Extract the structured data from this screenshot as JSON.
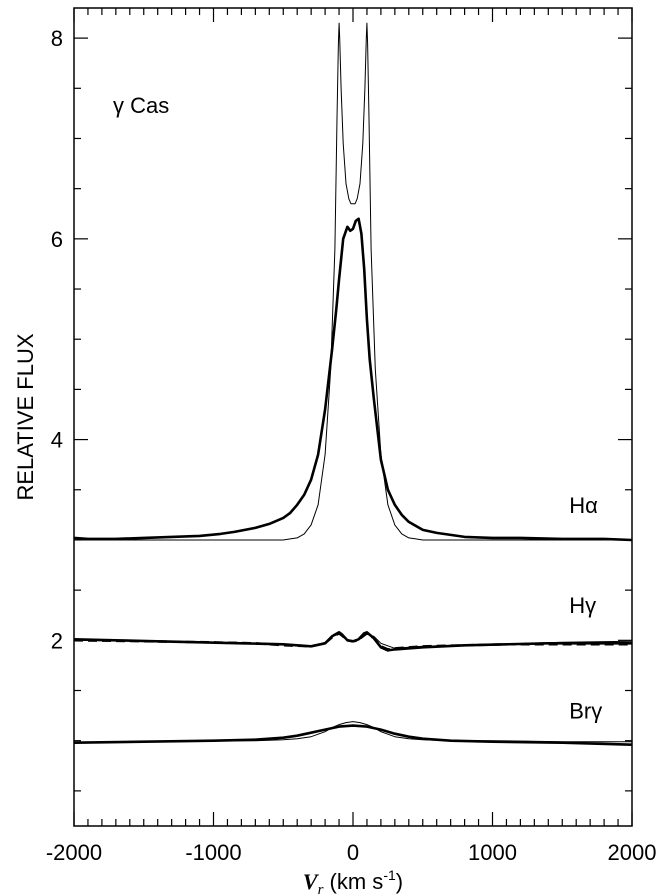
{
  "chart_data": {
    "type": "line",
    "title": "",
    "annotation": "γ Cas",
    "xlabel": "V_r (km s^-1)",
    "xlabel_parts": {
      "symbol": "V",
      "subscript": "r",
      "unit_open": " (km s",
      "unit_exp": "-1",
      "unit_close": ")"
    },
    "ylabel": "RELATIVE FLUX",
    "xlim": [
      -2000,
      2000
    ],
    "ylim": [
      0.15,
      8.3
    ],
    "xticks": [
      -2000,
      -1000,
      0,
      1000,
      2000
    ],
    "xtick_labels": [
      "-2000",
      "-1000",
      "0",
      "1000",
      "2000"
    ],
    "yticks": [
      2,
      4,
      6,
      8
    ],
    "ytick_labels": [
      "2",
      "4",
      "6",
      "8"
    ],
    "grid": false,
    "line_labels": [
      {
        "text": "Hα",
        "x": 1550,
        "y": 3.27
      },
      {
        "text": "Hγ",
        "x": 1550,
        "y": 2.27
      },
      {
        "text": "Brγ",
        "x": 1550,
        "y": 1.22
      }
    ],
    "series": [
      {
        "group": "Halpha",
        "style": "thick",
        "x": [
          -2000,
          -1900,
          -1700,
          -1500,
          -1300,
          -1100,
          -950,
          -850,
          -700,
          -600,
          -500,
          -450,
          -400,
          -350,
          -300,
          -250,
          -200,
          -150,
          -120,
          -100,
          -70,
          -40,
          -20,
          0,
          20,
          40,
          60,
          80,
          100,
          120,
          150,
          200,
          250,
          300,
          350,
          400,
          500,
          600,
          800,
          1000,
          1200,
          1500,
          1800,
          2000
        ],
        "y": [
          3.02,
          3.01,
          3.01,
          3.02,
          3.03,
          3.04,
          3.06,
          3.08,
          3.12,
          3.16,
          3.22,
          3.27,
          3.35,
          3.45,
          3.6,
          3.85,
          4.3,
          4.9,
          5.3,
          5.6,
          6.0,
          6.12,
          6.08,
          6.1,
          6.18,
          6.2,
          6.05,
          5.7,
          5.2,
          4.8,
          4.4,
          3.8,
          3.5,
          3.35,
          3.25,
          3.18,
          3.1,
          3.07,
          3.03,
          3.02,
          3.02,
          3.01,
          3.01,
          3.0
        ]
      },
      {
        "group": "Halpha",
        "style": "thin",
        "x": [
          -2000,
          -1500,
          -1000,
          -800,
          -600,
          -500,
          -450,
          -400,
          -350,
          -300,
          -250,
          -200,
          -160,
          -130,
          -115,
          -105,
          -100,
          -95,
          -85,
          -70,
          -50,
          -30,
          -15,
          0,
          15,
          30,
          50,
          70,
          85,
          95,
          100,
          105,
          115,
          130,
          160,
          200,
          250,
          300,
          350,
          400,
          450,
          500,
          600,
          800,
          1000,
          1500,
          2000
        ],
        "y": [
          3.0,
          3.0,
          3.0,
          3.0,
          3.0,
          3.0,
          3.01,
          3.02,
          3.06,
          3.15,
          3.35,
          3.85,
          4.7,
          5.9,
          7.2,
          7.95,
          8.15,
          8.0,
          7.5,
          6.95,
          6.55,
          6.4,
          6.35,
          6.35,
          6.35,
          6.4,
          6.55,
          6.95,
          7.5,
          8.0,
          8.15,
          7.95,
          7.2,
          5.9,
          4.7,
          3.85,
          3.35,
          3.15,
          3.06,
          3.02,
          3.01,
          3.0,
          3.0,
          3.0,
          3.0,
          3.0,
          3.0
        ]
      },
      {
        "group": "Hgamma",
        "style": "thin",
        "x": [
          -2000,
          -1500,
          -1000,
          -500,
          -300,
          -200,
          -150,
          -100,
          -60,
          -20,
          0,
          20,
          60,
          100,
          150,
          200,
          300,
          500,
          1000,
          1500,
          2000
        ],
        "y": [
          2.0,
          1.99,
          1.98,
          1.96,
          1.94,
          1.98,
          2.04,
          2.06,
          2.02,
          1.99,
          1.99,
          1.99,
          2.02,
          2.06,
          2.04,
          1.97,
          1.92,
          1.94,
          1.96,
          1.98,
          1.99
        ]
      },
      {
        "group": "Hgamma",
        "style": "thick",
        "x": [
          -2000,
          -1700,
          -1400,
          -1100,
          -800,
          -500,
          -300,
          -200,
          -150,
          -100,
          -80,
          -40,
          0,
          40,
          80,
          100,
          150,
          200,
          250,
          300,
          500,
          800,
          1100,
          1400,
          1700,
          2000
        ],
        "y": [
          2.01,
          2.0,
          1.99,
          1.98,
          1.97,
          1.96,
          1.94,
          1.97,
          2.04,
          2.08,
          2.06,
          2.0,
          1.99,
          2.01,
          2.07,
          2.08,
          2.02,
          1.93,
          1.9,
          1.91,
          1.93,
          1.95,
          1.96,
          1.97,
          1.97,
          1.97
        ]
      },
      {
        "group": "Hgamma",
        "style": "dashed",
        "x": [
          -2000,
          -1500,
          -1000,
          -700,
          -500,
          -300,
          -200,
          -150,
          -100,
          -80,
          -40,
          0,
          40,
          80,
          100,
          150,
          200,
          250,
          300,
          500,
          800,
          1100,
          1400,
          2000
        ],
        "y": [
          2.0,
          1.99,
          1.98,
          1.97,
          1.95,
          1.94,
          1.97,
          2.03,
          2.07,
          2.05,
          2.0,
          1.99,
          2.0,
          2.06,
          2.07,
          2.02,
          1.94,
          1.91,
          1.92,
          1.94,
          1.95,
          1.96,
          1.96,
          1.96
        ]
      },
      {
        "group": "Brgamma",
        "style": "thick",
        "x": [
          -2000,
          -1500,
          -1000,
          -700,
          -500,
          -400,
          -300,
          -200,
          -100,
          0,
          100,
          200,
          300,
          400,
          500,
          700,
          1000,
          1500,
          2000
        ],
        "y": [
          0.98,
          0.99,
          1.0,
          1.01,
          1.03,
          1.05,
          1.08,
          1.11,
          1.14,
          1.15,
          1.14,
          1.11,
          1.07,
          1.04,
          1.02,
          1.0,
          0.99,
          0.98,
          0.96
        ]
      },
      {
        "group": "Brgamma",
        "style": "thin",
        "x": [
          -2000,
          -1500,
          -1000,
          -700,
          -500,
          -400,
          -300,
          -200,
          -150,
          -100,
          -50,
          0,
          50,
          100,
          150,
          200,
          300,
          400,
          500,
          700,
          1000,
          1500,
          2000
        ],
        "y": [
          0.98,
          0.99,
          1.0,
          1.0,
          1.01,
          1.02,
          1.04,
          1.09,
          1.13,
          1.16,
          1.18,
          1.19,
          1.18,
          1.16,
          1.13,
          1.09,
          1.04,
          1.02,
          1.01,
          1.0,
          1.0,
          0.99,
          0.99
        ]
      }
    ]
  }
}
